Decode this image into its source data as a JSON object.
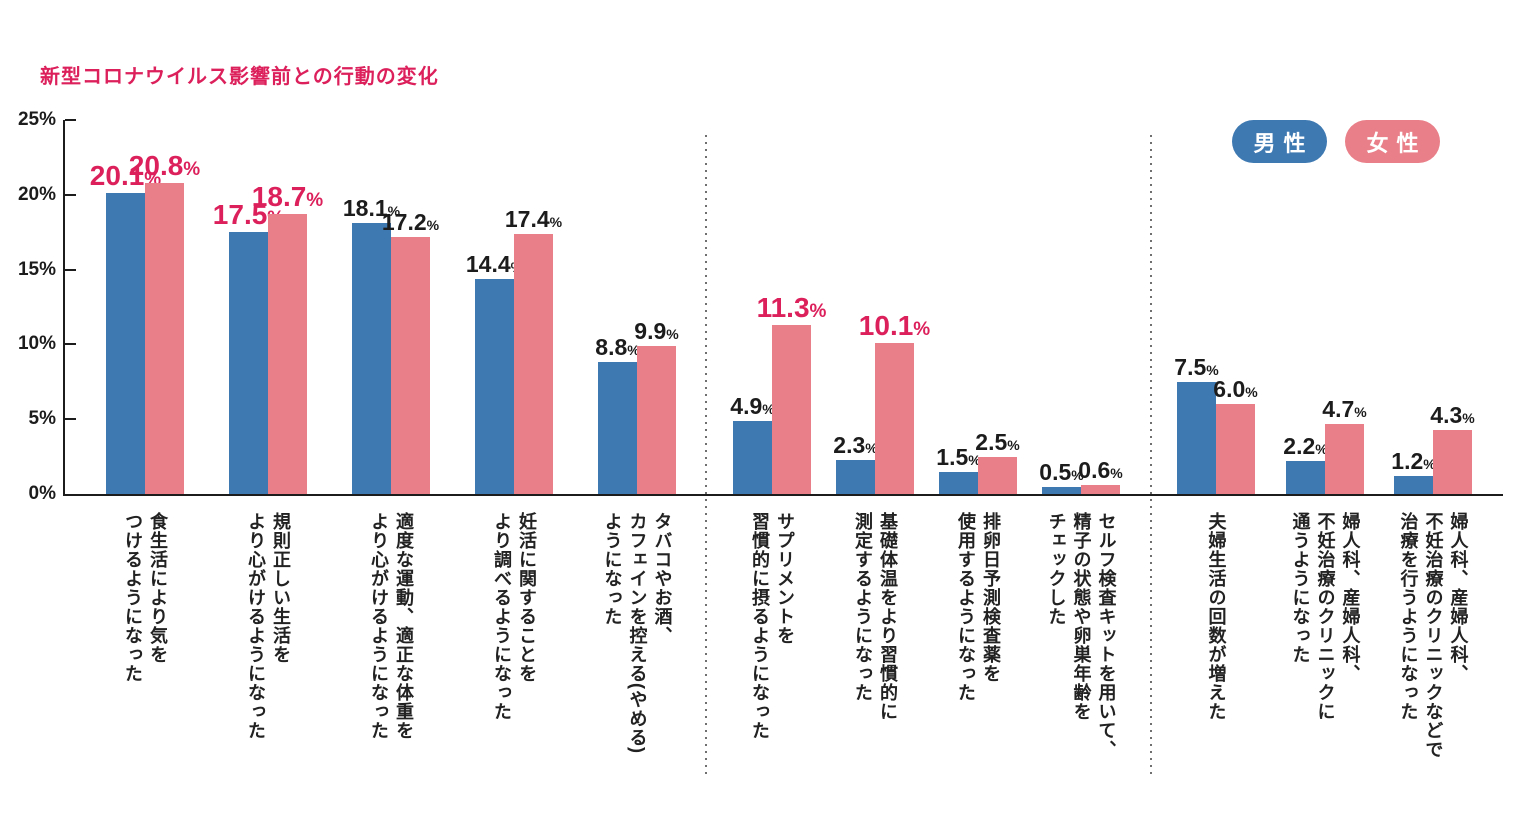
{
  "chart_data": {
    "type": "bar",
    "title": "新型コロナウイルス影響前との行動の変化",
    "title_color": "#dc205c",
    "xlabel": "",
    "ylabel": "",
    "ylim": [
      0,
      25
    ],
    "yticks": [
      {
        "value": 0,
        "label": "0%"
      },
      {
        "value": 5,
        "label": "5%"
      },
      {
        "value": 10,
        "label": "10%"
      },
      {
        "value": 15,
        "label": "15%"
      },
      {
        "value": 20,
        "label": "20%"
      },
      {
        "value": 25,
        "label": "25%"
      }
    ],
    "grid": false,
    "legend_position": "top-right",
    "series": [
      {
        "name": "男性",
        "color": "#3e79b2"
      },
      {
        "name": "女性",
        "color": "#e97f88"
      }
    ],
    "highlight_color": "#dc205c",
    "value_suffix": "%",
    "groups": [
      {
        "items": [
          {
            "category": "食生活により気をつけるようになった",
            "category_lines": [
              "食生活により気を",
              "つけるようになった"
            ],
            "male": 20.1,
            "female": 20.8,
            "male_highlight": true,
            "female_highlight": true
          },
          {
            "category": "規則正しい生活をより心がけるようになった",
            "category_lines": [
              "規則正しい生活を",
              "より心がけるようになった"
            ],
            "male": 17.5,
            "female": 18.7,
            "male_highlight": true,
            "female_highlight": true
          },
          {
            "category": "適度な運動、適正な体重をより心がけるようになった",
            "category_lines": [
              "適度な運動、適正な体重を",
              "より心がけるようになった"
            ],
            "male": 18.1,
            "female": 17.2,
            "male_highlight": false,
            "female_highlight": false
          },
          {
            "category": "妊活に関することをより調べるようになった",
            "category_lines": [
              "妊活に関することを",
              "より調べるようになった"
            ],
            "male": 14.4,
            "female": 17.4,
            "male_highlight": false,
            "female_highlight": false
          },
          {
            "category": "タバコやお酒、カフェインを控える(やめる)ようになった",
            "category_lines": [
              "タバコやお酒、",
              "カフェインを控える(やめる)",
              "ようになった"
            ],
            "male": 8.8,
            "female": 9.9,
            "male_highlight": false,
            "female_highlight": false
          }
        ]
      },
      {
        "items": [
          {
            "category": "サプリメントを習慣的に摂るようになった",
            "category_lines": [
              "サプリメントを",
              "習慣的に摂るようになった"
            ],
            "male": 4.9,
            "female": 11.3,
            "male_highlight": false,
            "female_highlight": true
          },
          {
            "category": "基礎体温をより習慣的に測定するようになった",
            "category_lines": [
              "基礎体温をより習慣的に",
              "測定するようになった"
            ],
            "male": 2.3,
            "female": 10.1,
            "male_highlight": false,
            "female_highlight": true
          },
          {
            "category": "排卵日予測検査薬を使用するようになった",
            "category_lines": [
              "排卵日予測検査薬を",
              "使用するようになった"
            ],
            "male": 1.5,
            "female": 2.5,
            "male_highlight": false,
            "female_highlight": false
          },
          {
            "category": "セルフ検査キットを用いて、精子の状態や卵巣年齢をチェックした",
            "category_lines": [
              "セルフ検査キットを用いて、",
              "精子の状態や卵巣年齢を",
              "チェックした"
            ],
            "male": 0.5,
            "female": 0.6,
            "male_highlight": false,
            "female_highlight": false
          }
        ]
      },
      {
        "items": [
          {
            "category": "夫婦生活の回数が増えた",
            "category_lines": [
              "夫婦生活の回数が増えた"
            ],
            "male": 7.5,
            "female": 6.0,
            "male_highlight": false,
            "female_highlight": false
          },
          {
            "category": "婦人科、産婦人科、不妊治療のクリニックに通うようになった",
            "category_lines": [
              "婦人科、産婦人科、",
              "不妊治療のクリニックに",
              "通うようになった"
            ],
            "male": 2.2,
            "female": 4.7,
            "male_highlight": false,
            "female_highlight": false
          },
          {
            "category": "婦人科、産婦人科、不妊治療のクリニックなどで治療を行うようになった",
            "category_lines": [
              "婦人科、産婦人科、",
              "不妊治療のクリニックなどで",
              "治療を行うようになった"
            ],
            "male": 1.2,
            "female": 4.3,
            "male_highlight": false,
            "female_highlight": false
          }
        ]
      }
    ]
  }
}
